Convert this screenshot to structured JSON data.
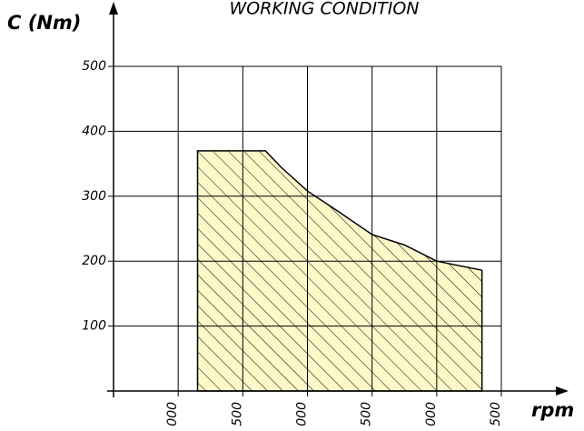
{
  "chart_data": {
    "type": "area",
    "title": "WORKING CONDITION",
    "y_label": "C (Nm)",
    "x_label": "rpm",
    "x": [
      1150,
      1150,
      1675,
      1800,
      2000,
      2250,
      2500,
      2750,
      3000,
      3350,
      3350
    ],
    "values": [
      0,
      370,
      370,
      344,
      308,
      275,
      241,
      225,
      200,
      186,
      0
    ],
    "color": "#fcf8c8",
    "hatch": true,
    "xlim": [
      500,
      3500
    ],
    "xticks": [
      {
        "value": 1000,
        "label": "000"
      },
      {
        "value": 1500,
        "label": "500"
      },
      {
        "value": 2000,
        "label": "000"
      },
      {
        "value": 2500,
        "label": "500"
      },
      {
        "value": 3000,
        "label": "000"
      },
      {
        "value": 3500,
        "label": "500"
      }
    ],
    "ylim": [
      0,
      500
    ],
    "yticks": [
      100,
      200,
      300,
      400,
      500
    ],
    "grid": true
  }
}
